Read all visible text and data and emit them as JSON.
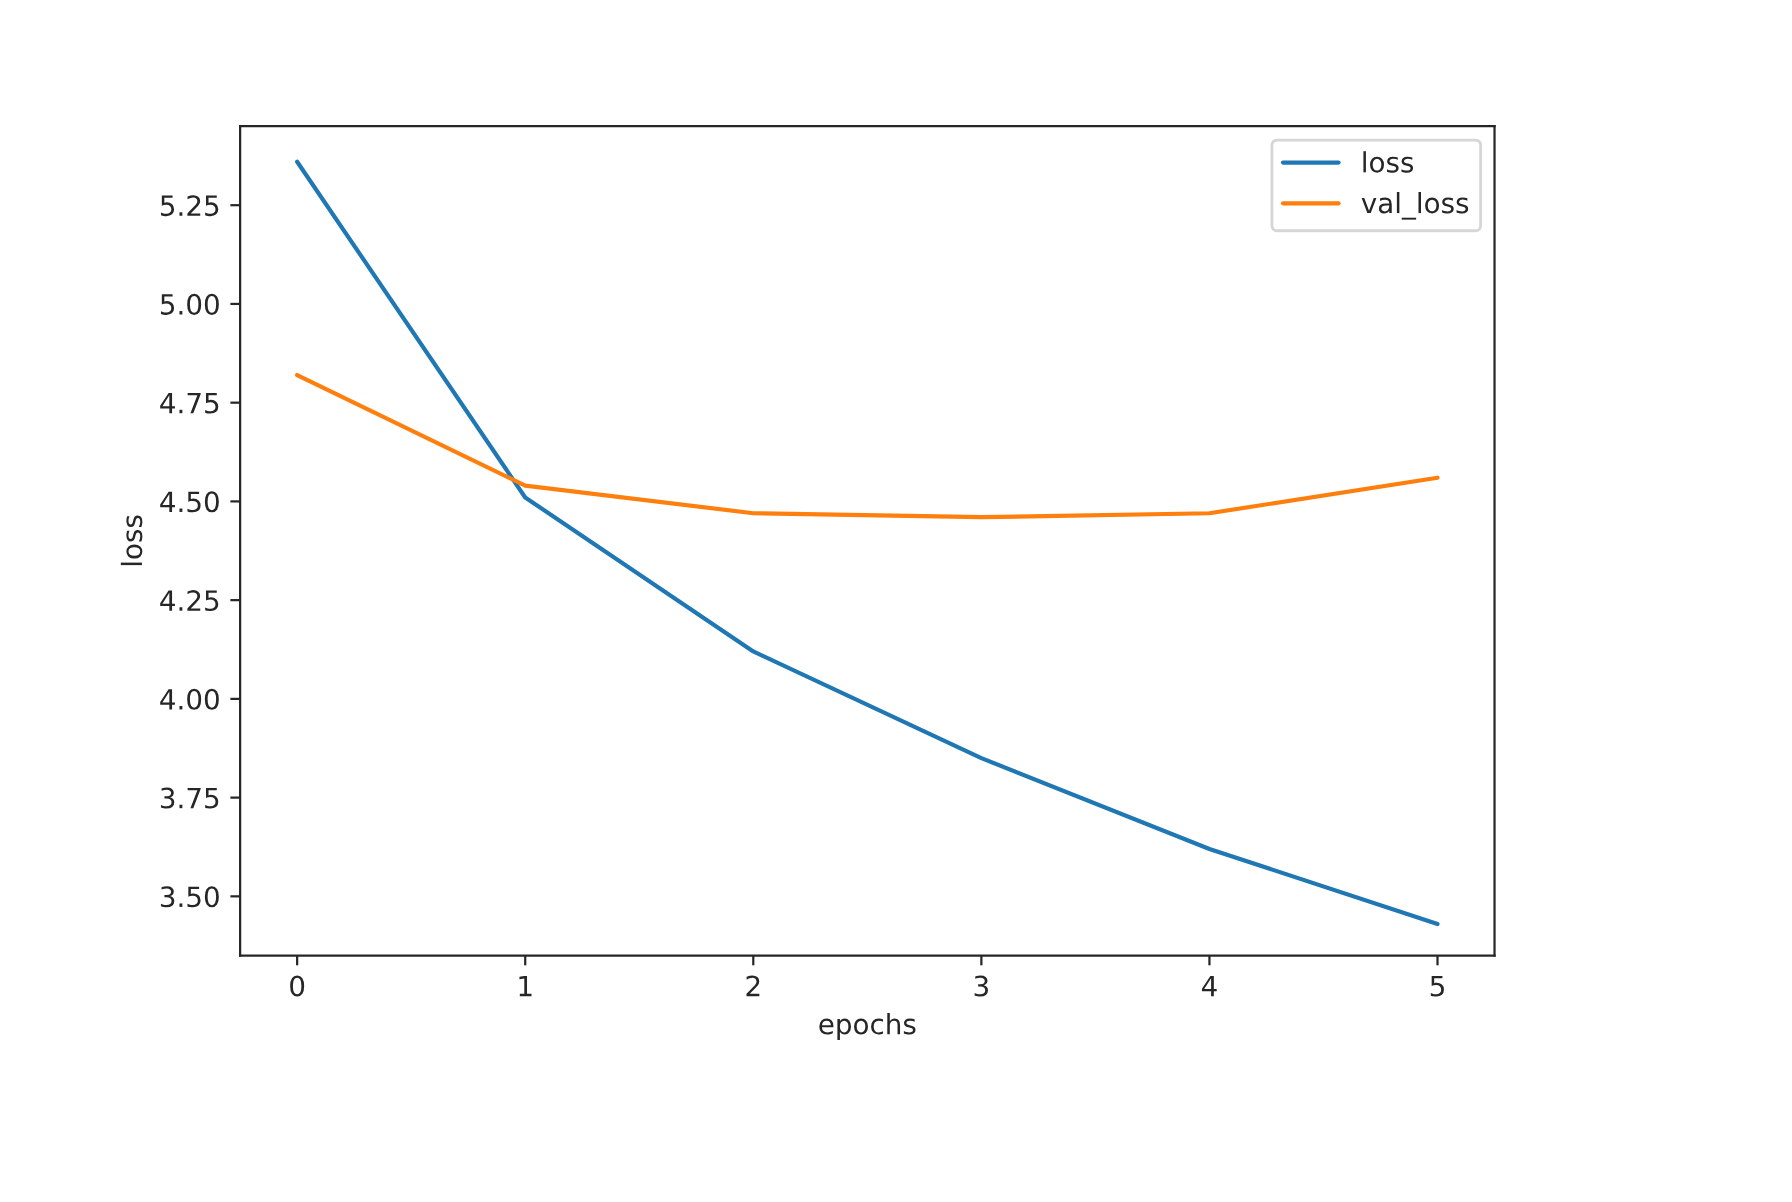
{
  "chart_data": {
    "type": "line",
    "xlabel": "epochs",
    "ylabel": "loss",
    "x": [
      0,
      1,
      2,
      3,
      4,
      5
    ],
    "series": [
      {
        "name": "loss",
        "color": "#1f77b4",
        "values": [
          5.36,
          4.51,
          4.12,
          3.85,
          3.62,
          3.43
        ]
      },
      {
        "name": "val_loss",
        "color": "#ff7f0e",
        "values": [
          4.82,
          4.54,
          4.47,
          4.46,
          4.47,
          4.56
        ]
      }
    ],
    "xlim": [
      -0.25,
      5.25
    ],
    "xticks": [
      0,
      1,
      2,
      3,
      4,
      5
    ],
    "ylim": [
      3.35,
      5.45
    ],
    "yticks": [
      {
        "value": 3.5,
        "label": "3.50"
      },
      {
        "value": 3.75,
        "label": "3.75"
      },
      {
        "value": 4.0,
        "label": "4.00"
      },
      {
        "value": 4.25,
        "label": "4.25"
      },
      {
        "value": 4.5,
        "label": "4.50"
      },
      {
        "value": 4.75,
        "label": "4.75"
      },
      {
        "value": 5.0,
        "label": "5.00"
      },
      {
        "value": 5.25,
        "label": "5.25"
      }
    ],
    "legend": "upper right",
    "grid": false
  }
}
